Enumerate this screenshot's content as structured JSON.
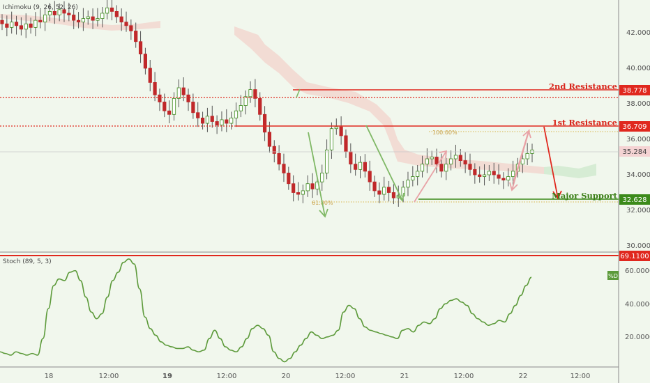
{
  "chart_data": {
    "type": "candlestick",
    "indicators": {
      "ichimoku_label": "Ichimoku (9, 26, 52, 26)",
      "stoch_label": "Stoch (89, 5, 3)",
      "stoch_d_tag": "%D"
    },
    "x_ticks": [
      "18",
      "12:00",
      "19",
      "12:00",
      "20",
      "12:00",
      "21",
      "12:00",
      "22",
      "12:00"
    ],
    "price_ticks": [
      "42.000",
      "40.000",
      "38.000",
      "36.000",
      "34.000",
      "32.000",
      "30.000"
    ],
    "stoch_ticks": [
      "60.0000",
      "40.0000",
      "20.0000"
    ],
    "levels": {
      "second_resistance": {
        "label": "2nd Resistance",
        "value": "38.778"
      },
      "first_resistance": {
        "label": "1st Resistance",
        "value": "36.709"
      },
      "major_support": {
        "label": "Major Support",
        "value": "32.628"
      },
      "current_price": {
        "value": "35.284"
      },
      "stoch_level": {
        "value": "69.1100"
      }
    },
    "fib": {
      "level_100": "100.00%",
      "level_618": "61.80%"
    },
    "price_series": [
      42.5,
      42.3,
      42.6,
      42.4,
      42.2,
      42.5,
      42.3,
      42.7,
      42.6,
      43.0,
      43.2,
      43.0,
      43.3,
      43.1,
      43.0,
      42.7,
      42.6,
      42.8,
      42.9,
      42.7,
      42.8,
      43.1,
      43.4,
      43.2,
      42.9,
      42.6,
      42.4,
      42.1,
      41.5,
      40.8,
      40.0,
      39.2,
      38.5,
      38.1,
      37.6,
      37.4,
      38.3,
      38.9,
      38.5,
      38.1,
      37.5,
      37.2,
      36.9,
      37.3,
      37.0,
      36.8,
      37.1,
      36.9,
      37.2,
      37.6,
      37.9,
      38.4,
      38.8,
      38.3,
      37.4,
      36.4,
      35.6,
      35.2,
      34.6,
      34.1,
      33.5,
      33.0,
      32.9,
      33.1,
      33.5,
      33.2,
      33.6,
      34.1,
      35.4,
      36.6,
      36.7,
      36.2,
      35.3,
      34.6,
      34.3,
      34.7,
      34.2,
      33.6,
      33.1,
      32.9,
      33.3,
      33.0,
      32.7,
      32.8,
      33.3,
      33.7,
      33.9,
      34.2,
      34.6,
      34.9,
      35.0,
      34.6,
      34.2,
      34.6,
      34.9,
      35.1,
      34.8,
      34.6,
      34.3,
      34.0,
      33.9,
      34.0,
      34.2,
      34.0,
      33.8,
      33.7,
      33.9,
      34.2,
      34.6,
      34.9,
      35.2,
      35.4
    ],
    "stoch_series": [
      12,
      11,
      10,
      12,
      11,
      10,
      11,
      10,
      20,
      38,
      52,
      56,
      55,
      60,
      61,
      55,
      45,
      36,
      32,
      35,
      45,
      55,
      60,
      66,
      68,
      65,
      50,
      33,
      26,
      22,
      18,
      16,
      15,
      14,
      14,
      15,
      13,
      12,
      13,
      20,
      25,
      20,
      15,
      13,
      12,
      15,
      20,
      26,
      28,
      26,
      22,
      12,
      8,
      6,
      8,
      12,
      16,
      20,
      24,
      22,
      20,
      21,
      22,
      25,
      36,
      40,
      38,
      32,
      27,
      25,
      24,
      23,
      22,
      21,
      20,
      25,
      26,
      24,
      28,
      30,
      29,
      32,
      38,
      41,
      43,
      44,
      42,
      40,
      35,
      32,
      30,
      28,
      29,
      31,
      30,
      35,
      40,
      46,
      52,
      57
    ],
    "price_range": [
      29.5,
      43.5
    ],
    "stoch_range": [
      3,
      73
    ]
  }
}
